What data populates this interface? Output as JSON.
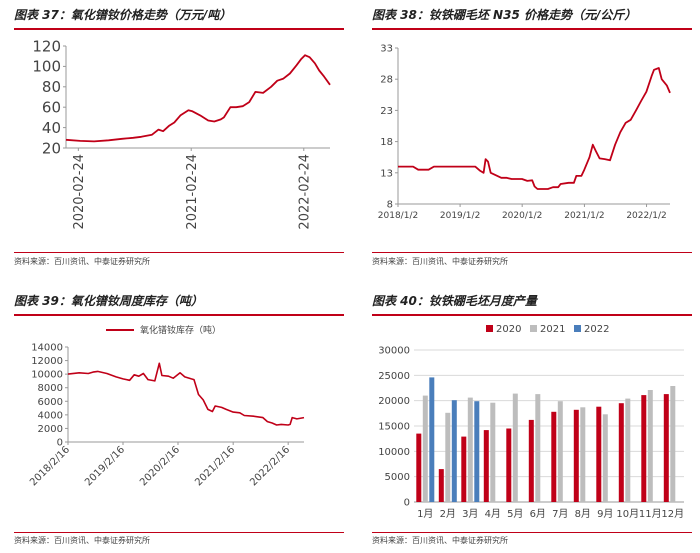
{
  "colors": {
    "accent": "#c00018",
    "series_2020": "#c00018",
    "series_2021": "#bdbdbd",
    "series_2022": "#4a7ebb"
  },
  "panels": {
    "p37": {
      "title": "图表 37：氧化镨钕价格走势（万元/吨）",
      "source": "资料来源：百川资讯、中泰证券研究所"
    },
    "p38": {
      "title": "图表 38：钕铁硼毛坯 N35 价格走势（元/公斤）",
      "source": "资料来源：百川资讯、中泰证券研究所"
    },
    "p39": {
      "title": "图表 39：氧化镨钕周度库存（吨）",
      "source": "资料来源：百川资讯、中泰证券研究所"
    },
    "p40": {
      "title": "图表 40：钕铁硼毛坯月度产量",
      "source": "资料来源：百川资讯、中泰证券研究所"
    }
  },
  "chart_data": [
    {
      "id": "p37",
      "type": "line",
      "title": "",
      "xlabel": "",
      "ylabel": "",
      "ylim": [
        20,
        120
      ],
      "yticks": [
        20,
        40,
        60,
        80,
        100,
        120
      ],
      "xlim": [
        "2020-01-15",
        "2022-05-20"
      ],
      "xticks": [
        "2020-02-24",
        "2021-02-24",
        "2022-02-24"
      ],
      "grid": false,
      "series": [
        {
          "points": [
            [
              "2020-01-15",
              28
            ],
            [
              "2020-03-01",
              27
            ],
            [
              "2020-04-15",
              26.5
            ],
            [
              "2020-06-01",
              27.5
            ],
            [
              "2020-07-15",
              29
            ],
            [
              "2020-08-20",
              30
            ],
            [
              "2020-09-15",
              31
            ],
            [
              "2020-10-20",
              33
            ],
            [
              "2020-11-10",
              38
            ],
            [
              "2020-11-25",
              36.5
            ],
            [
              "2020-12-15",
              42
            ],
            [
              "2020-12-31",
              45
            ],
            [
              "2021-01-20",
              52
            ],
            [
              "2021-02-15",
              57
            ],
            [
              "2021-02-28",
              56
            ],
            [
              "2021-03-25",
              52
            ],
            [
              "2021-04-20",
              47
            ],
            [
              "2021-05-10",
              46
            ],
            [
              "2021-05-31",
              48
            ],
            [
              "2021-06-10",
              50
            ],
            [
              "2021-07-01",
              60
            ],
            [
              "2021-07-20",
              60
            ],
            [
              "2021-08-10",
              61
            ],
            [
              "2021-08-31",
              65
            ],
            [
              "2021-09-20",
              75
            ],
            [
              "2021-10-15",
              74
            ],
            [
              "2021-11-10",
              80
            ],
            [
              "2021-11-30",
              86
            ],
            [
              "2021-12-20",
              88
            ],
            [
              "2022-01-10",
              93
            ],
            [
              "2022-01-31",
              101
            ],
            [
              "2022-02-15",
              107
            ],
            [
              "2022-02-28",
              111
            ],
            [
              "2022-03-15",
              109
            ],
            [
              "2022-04-01",
              103
            ],
            [
              "2022-04-15",
              96
            ],
            [
              "2022-05-01",
              90
            ],
            [
              "2022-05-20",
              82
            ]
          ]
        }
      ]
    },
    {
      "id": "p38",
      "type": "line",
      "title": "",
      "xlabel": "",
      "ylabel": "",
      "ylim": [
        8,
        33
      ],
      "yticks": [
        8,
        13,
        18,
        23,
        28,
        33
      ],
      "xlim": [
        "2018-01-02",
        "2022-05-20"
      ],
      "xticks": [
        "2018-01-02",
        "2019-01-02",
        "2020-01-02",
        "2021-01-02",
        "2022-01-02"
      ],
      "grid": false,
      "series": [
        {
          "points": [
            [
              "2018-01-02",
              14
            ],
            [
              "2018-04-01",
              14
            ],
            [
              "2018-05-01",
              13.5
            ],
            [
              "2018-07-01",
              13.5
            ],
            [
              "2018-08-01",
              14
            ],
            [
              "2019-04-01",
              14
            ],
            [
              "2019-05-01",
              13.3
            ],
            [
              "2019-05-20",
              13
            ],
            [
              "2019-06-01",
              15.2
            ],
            [
              "2019-06-15",
              14.8
            ],
            [
              "2019-07-01",
              13
            ],
            [
              "2019-08-01",
              12.6
            ],
            [
              "2019-09-01",
              12.2
            ],
            [
              "2019-10-01",
              12.2
            ],
            [
              "2019-11-01",
              12.0
            ],
            [
              "2020-01-01",
              12.0
            ],
            [
              "2020-02-01",
              11.7
            ],
            [
              "2020-03-01",
              11.8
            ],
            [
              "2020-03-15",
              10.8
            ],
            [
              "2020-04-01",
              10.4
            ],
            [
              "2020-06-01",
              10.4
            ],
            [
              "2020-07-01",
              10.7
            ],
            [
              "2020-08-01",
              10.7
            ],
            [
              "2020-08-15",
              11.2
            ],
            [
              "2020-10-01",
              11.4
            ],
            [
              "2020-11-01",
              11.4
            ],
            [
              "2020-11-15",
              12.5
            ],
            [
              "2020-12-15",
              12.5
            ],
            [
              "2021-01-01",
              13.5
            ],
            [
              "2021-02-01",
              15.5
            ],
            [
              "2021-02-20",
              17.5
            ],
            [
              "2021-03-10",
              16.5
            ],
            [
              "2021-04-01",
              15.3
            ],
            [
              "2021-05-01",
              15.2
            ],
            [
              "2021-06-01",
              15.0
            ],
            [
              "2021-07-01",
              17.5
            ],
            [
              "2021-08-01",
              19.5
            ],
            [
              "2021-09-01",
              21.0
            ],
            [
              "2021-10-01",
              21.5
            ],
            [
              "2021-11-01",
              23.0
            ],
            [
              "2021-12-01",
              24.5
            ],
            [
              "2022-01-01",
              26.0
            ],
            [
              "2022-02-01",
              28.5
            ],
            [
              "2022-02-15",
              29.5
            ],
            [
              "2022-03-15",
              29.8
            ],
            [
              "2022-04-01",
              28.0
            ],
            [
              "2022-05-01",
              27.0
            ],
            [
              "2022-05-20",
              25.8
            ]
          ]
        }
      ]
    },
    {
      "id": "p39",
      "type": "line",
      "title": "",
      "xlabel": "",
      "ylabel": "",
      "ylim": [
        0,
        14000
      ],
      "yticks": [
        0,
        2000,
        4000,
        6000,
        8000,
        10000,
        12000,
        14000
      ],
      "xlim": [
        "2018-02-16",
        "2022-06-01"
      ],
      "xticks": [
        "2018-02-16",
        "2019-02-16",
        "2020-02-16",
        "2021-02-16",
        "2022-02-16"
      ],
      "grid": false,
      "legend_position": "top",
      "series": [
        {
          "name": "氧化镨钕库存（吨）",
          "points": [
            [
              "2018-02-16",
              10000
            ],
            [
              "2018-05-01",
              10200
            ],
            [
              "2018-07-01",
              10100
            ],
            [
              "2018-08-01",
              10300
            ],
            [
              "2018-09-01",
              10400
            ],
            [
              "2018-11-01",
              10100
            ],
            [
              "2019-01-01",
              9600
            ],
            [
              "2019-02-16",
              9300
            ],
            [
              "2019-04-01",
              9100
            ],
            [
              "2019-05-01",
              9900
            ],
            [
              "2019-06-01",
              9700
            ],
            [
              "2019-07-01",
              10100
            ],
            [
              "2019-08-01",
              9200
            ],
            [
              "2019-09-15",
              9000
            ],
            [
              "2019-10-15",
              11600
            ],
            [
              "2019-11-01",
              9800
            ],
            [
              "2019-12-15",
              9700
            ],
            [
              "2020-01-15",
              9400
            ],
            [
              "2020-03-01",
              10200
            ],
            [
              "2020-04-01",
              9600
            ],
            [
              "2020-05-15",
              9300
            ],
            [
              "2020-06-01",
              9200
            ],
            [
              "2020-07-01",
              7000
            ],
            [
              "2020-08-01",
              6200
            ],
            [
              "2020-09-01",
              4800
            ],
            [
              "2020-10-01",
              4500
            ],
            [
              "2020-10-20",
              5300
            ],
            [
              "2020-12-01",
              5100
            ],
            [
              "2021-01-01",
              4800
            ],
            [
              "2021-02-16",
              4400
            ],
            [
              "2021-04-01",
              4300
            ],
            [
              "2021-05-01",
              3900
            ],
            [
              "2021-07-01",
              3800
            ],
            [
              "2021-09-01",
              3600
            ],
            [
              "2021-10-01",
              3000
            ],
            [
              "2021-11-01",
              2800
            ],
            [
              "2021-12-01",
              2500
            ],
            [
              "2022-01-01",
              2600
            ],
            [
              "2022-02-16",
              2500
            ],
            [
              "2022-03-01",
              2600
            ],
            [
              "2022-03-15",
              3600
            ],
            [
              "2022-04-15",
              3400
            ],
            [
              "2022-06-01",
              3600
            ]
          ]
        }
      ]
    },
    {
      "id": "p40",
      "type": "bar",
      "title": "",
      "xlabel": "",
      "ylabel": "",
      "ylim": [
        0,
        30000
      ],
      "yticks": [
        0,
        5000,
        10000,
        15000,
        20000,
        25000,
        30000
      ],
      "grid": true,
      "legend_position": "top-left",
      "categories": [
        "1月",
        "2月",
        "3月",
        "4月",
        "5月",
        "6月",
        "7月",
        "8月",
        "9月",
        "10月",
        "11月",
        "12月"
      ],
      "series": [
        {
          "name": "2020",
          "values": [
            13500,
            6500,
            12900,
            14200,
            14500,
            16200,
            17800,
            18200,
            18800,
            19500,
            21100,
            21300
          ]
        },
        {
          "name": "2021",
          "values": [
            21000,
            17600,
            20600,
            19600,
            21400,
            21300,
            19900,
            18700,
            17300,
            20400,
            22100,
            22900
          ]
        },
        {
          "name": "2022",
          "values": [
            24600,
            20100,
            19900,
            null,
            null,
            null,
            null,
            null,
            null,
            null,
            null,
            null
          ]
        }
      ]
    }
  ]
}
